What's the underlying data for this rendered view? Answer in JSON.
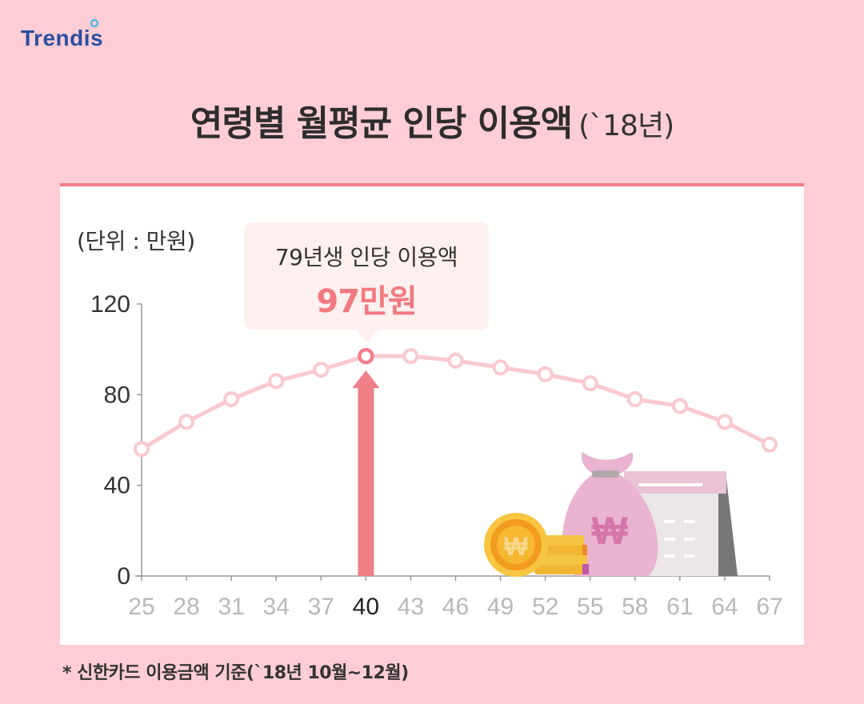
{
  "brand": {
    "logo_text": "Trendis"
  },
  "title": {
    "main": "연령별 월평균 인당 이용액",
    "sub": "(`18년)"
  },
  "unit_label": "(단위 : 만원)",
  "callout": {
    "label": "79년생 인당 이용액",
    "value": "97만원"
  },
  "footnote": "* 신한카드 이용금액 기준(`18년 10월~12월)",
  "colors": {
    "background": "#ffcdd5",
    "line": "#f9c9cf",
    "highlight": "#f07f87",
    "accent_text": "#f07a80"
  },
  "chart_data": {
    "type": "line",
    "x": [
      25,
      28,
      31,
      34,
      37,
      40,
      43,
      46,
      49,
      52,
      55,
      58,
      61,
      64,
      67
    ],
    "y": [
      56,
      68,
      78,
      86,
      91,
      97,
      97,
      95,
      92,
      89,
      85,
      78,
      75,
      68,
      58
    ],
    "ylim": [
      0,
      120
    ],
    "yticks": [
      0,
      40,
      80,
      120
    ],
    "highlight": {
      "x": 40,
      "y": 97
    },
    "grid": false,
    "title": "연령별 월평균 인당 이용액",
    "unit": "(단위 : 만원)"
  }
}
